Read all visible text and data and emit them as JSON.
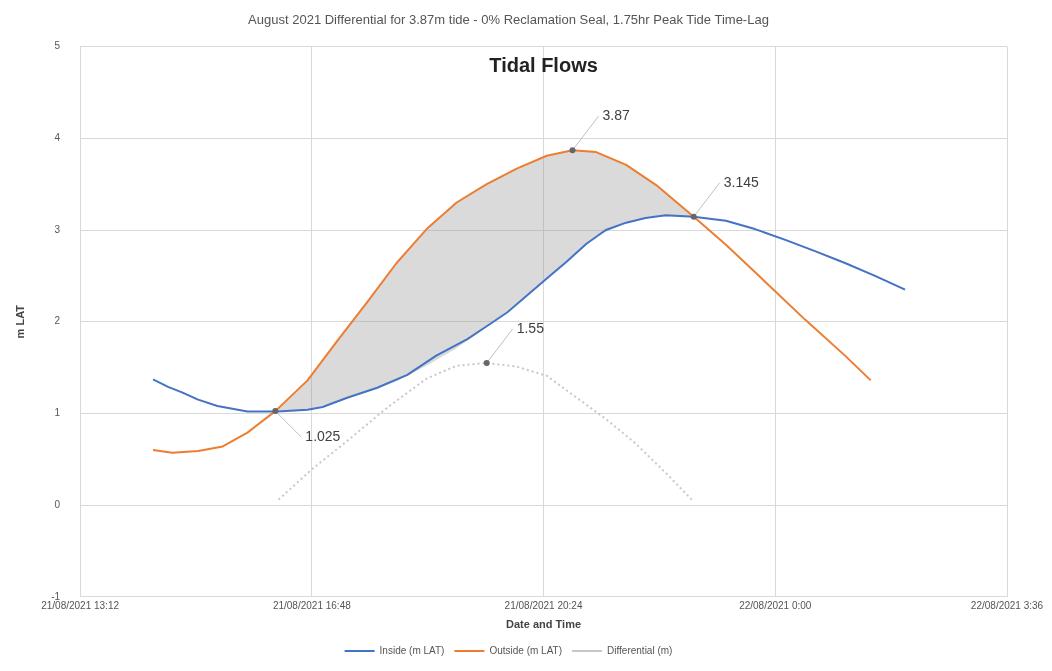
{
  "chart_data": {
    "type": "line",
    "title": "August 2021 Differential for 3.87m tide - 0% Reclamation Seal, 1.75hr Peak Tide Time-Lag",
    "subtitle": "Tidal Flows",
    "xlabel": "Date and Time",
    "ylabel": "m LAT",
    "xlim": [
      "2021-08-21T13:12",
      "2021-08-22T03:36"
    ],
    "xticks": [
      {
        "value": "2021-08-21T13:12",
        "label": "21/08/2021 13:12"
      },
      {
        "value": "2021-08-21T16:48",
        "label": "21/08/2021 16:48"
      },
      {
        "value": "2021-08-21T20:24",
        "label": "21/08/2021 20:24"
      },
      {
        "value": "2021-08-22T00:00",
        "label": "22/08/2021 0:00"
      },
      {
        "value": "2021-08-22T03:36",
        "label": "22/08/2021 3:36"
      }
    ],
    "ylim": [
      -1,
      5
    ],
    "yticks": [
      -1,
      0,
      1,
      2,
      3,
      4,
      5
    ],
    "grid": true,
    "legend": "bottom",
    "marker": "none",
    "series": [
      {
        "name": "Inside (m LAT)",
        "color": "#4472c4",
        "x": [
          "2021-08-21T14:20",
          "2021-08-21T14:34",
          "2021-08-21T14:47",
          "2021-08-21T15:02",
          "2021-08-21T15:20",
          "2021-08-21T15:48",
          "2021-08-21T16:16",
          "2021-08-21T16:44",
          "2021-08-21T16:58",
          "2021-08-21T17:21",
          "2021-08-21T17:49",
          "2021-08-21T18:17",
          "2021-08-21T18:44",
          "2021-08-21T19:13",
          "2021-08-21T19:31",
          "2021-08-21T19:50",
          "2021-08-21T20:08",
          "2021-08-21T20:27",
          "2021-08-21T20:46",
          "2021-08-21T21:04",
          "2021-08-21T21:22",
          "2021-08-21T21:41",
          "2021-08-21T21:59",
          "2021-08-21T22:18",
          "2021-08-21T22:44",
          "2021-08-21T23:14",
          "2021-08-21T23:41",
          "2021-08-22T00:10",
          "2021-08-22T00:37",
          "2021-08-22T01:05",
          "2021-08-22T01:33",
          "2021-08-22T02:01"
        ],
        "values": [
          1.37,
          1.29,
          1.23,
          1.15,
          1.08,
          1.02,
          1.02,
          1.04,
          1.07,
          1.17,
          1.28,
          1.42,
          1.63,
          1.81,
          1.95,
          2.1,
          2.28,
          2.47,
          2.66,
          2.85,
          3.0,
          3.08,
          3.13,
          3.16,
          3.145,
          3.1,
          3.01,
          2.89,
          2.77,
          2.64,
          2.5,
          2.35
        ]
      },
      {
        "name": "Outside (m LAT)",
        "color": "#ed7d31",
        "x": [
          "2021-08-21T14:20",
          "2021-08-21T14:38",
          "2021-08-21T15:02",
          "2021-08-21T15:25",
          "2021-08-21T15:48",
          "2021-08-21T16:14",
          "2021-08-21T16:44",
          "2021-08-21T17:11",
          "2021-08-21T17:40",
          "2021-08-21T18:07",
          "2021-08-21T18:35",
          "2021-08-21T19:03",
          "2021-08-21T19:31",
          "2021-08-21T19:59",
          "2021-08-21T20:27",
          "2021-08-21T20:51",
          "2021-08-21T21:13",
          "2021-08-21T21:41",
          "2021-08-21T22:09",
          "2021-08-21T22:44",
          "2021-08-21T23:14",
          "2021-08-21T23:51",
          "2021-08-22T00:28",
          "2021-08-22T01:05",
          "2021-08-22T01:29"
        ],
        "values": [
          0.6,
          0.57,
          0.59,
          0.64,
          0.79,
          1.025,
          1.36,
          1.78,
          2.22,
          2.64,
          3.01,
          3.3,
          3.5,
          3.67,
          3.81,
          3.87,
          3.85,
          3.71,
          3.49,
          3.145,
          2.84,
          2.43,
          2.02,
          1.63,
          1.36
        ],
        "lower": [
          null,
          null,
          null,
          null,
          null,
          1.025,
          1.04,
          1.13,
          1.24,
          1.35,
          1.52,
          1.71,
          1.95,
          2.19,
          2.47,
          2.72,
          2.93,
          3.08,
          3.15,
          3.145,
          null,
          null,
          null,
          null,
          null
        ],
        "upper": [
          null,
          null,
          null,
          null,
          null,
          1.025,
          1.36,
          1.78,
          2.22,
          2.64,
          3.01,
          3.3,
          3.5,
          3.67,
          3.81,
          3.87,
          3.85,
          3.71,
          3.49,
          3.145,
          null,
          null,
          null,
          null,
          null
        ]
      },
      {
        "name": "Differential (m)",
        "color": "#c8c8c8",
        "line_style": "dotted",
        "x": [
          "2021-08-21T16:17",
          "2021-08-21T16:48",
          "2021-08-21T17:21",
          "2021-08-21T17:58",
          "2021-08-21T18:35",
          "2021-08-21T19:03",
          "2021-08-21T19:31",
          "2021-08-21T19:59",
          "2021-08-21T20:27",
          "2021-08-21T20:55",
          "2021-08-21T21:22",
          "2021-08-21T21:50",
          "2021-08-21T22:18",
          "2021-08-21T22:43"
        ],
        "values": [
          0.06,
          0.39,
          0.7,
          1.06,
          1.38,
          1.52,
          1.55,
          1.51,
          1.41,
          1.17,
          0.94,
          0.67,
          0.35,
          0.05
        ]
      }
    ],
    "annotations": [
      {
        "text": "1.025",
        "x": "2021-08-21T16:14",
        "y": 1.025
      },
      {
        "text": "1.55",
        "x": "2021-08-21T19:31",
        "y": 1.55
      },
      {
        "text": "3.87",
        "x": "2021-08-21T20:51",
        "y": 3.87
      },
      {
        "text": "3.145",
        "x": "2021-08-21T22:44",
        "y": 3.145
      }
    ]
  }
}
